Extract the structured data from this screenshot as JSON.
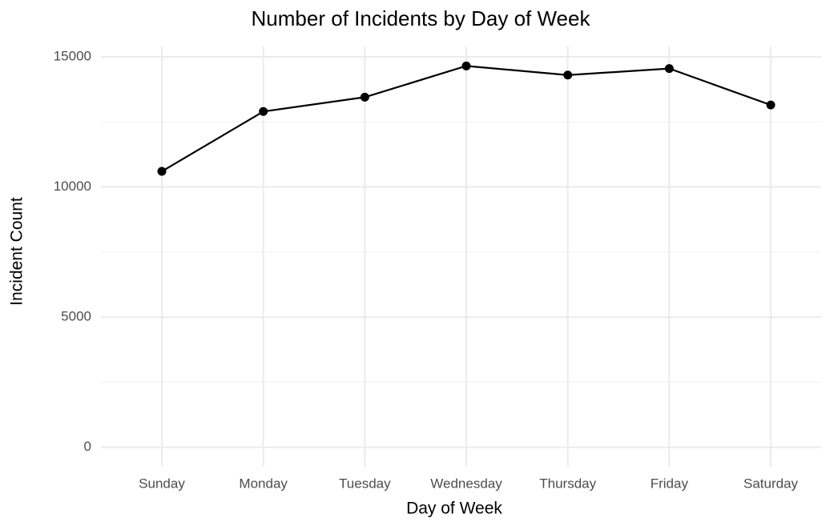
{
  "chart_data": {
    "type": "line",
    "title": "Number of Incidents by Day of Week",
    "x_label": "Day of Week",
    "y_label": "Incident Count",
    "categories": [
      "Sunday",
      "Monday",
      "Tuesday",
      "Wednesday",
      "Thursday",
      "Friday",
      "Saturday"
    ],
    "values": [
      10600,
      12900,
      13450,
      14650,
      14300,
      14550,
      13150
    ],
    "color": "#000000",
    "ylim": [
      -750,
      15400
    ],
    "yticks": [
      0,
      5000,
      10000,
      15000
    ],
    "minor_yticks": [
      2500,
      7500,
      12500
    ],
    "grid": true,
    "markers": true
  }
}
